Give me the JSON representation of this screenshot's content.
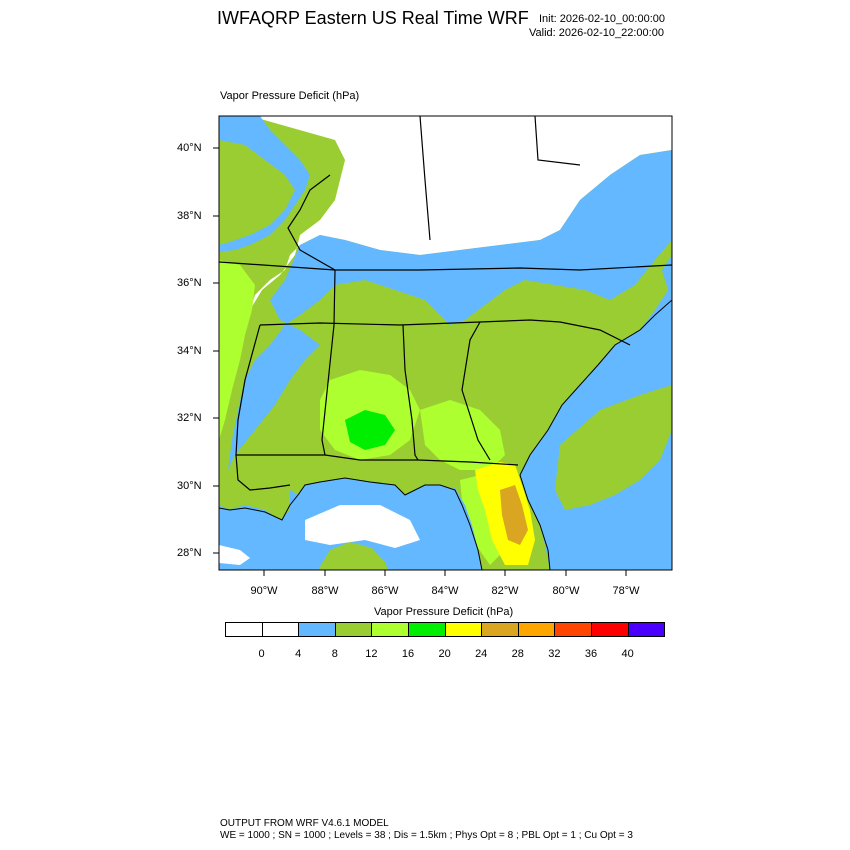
{
  "header": {
    "title": "IWFAQRP Eastern US Real Time WRF",
    "init": "Init: 2026-02-10_00:00:00",
    "valid": "Valid: 2026-02-10_22:00:00"
  },
  "plot": {
    "title": "Vapor Pressure Deficit   (hPa)"
  },
  "map": {
    "lat_range": [
      27.5,
      41.0
    ],
    "lon_range": [
      -91.5,
      -76.6
    ],
    "lat_ticks": [
      {
        "value": 40,
        "label": "40°N"
      },
      {
        "value": 38,
        "label": "38°N"
      },
      {
        "value": 36,
        "label": "36°N"
      },
      {
        "value": 34,
        "label": "34°N"
      },
      {
        "value": 32,
        "label": "32°N"
      },
      {
        "value": 30,
        "label": "30°N"
      },
      {
        "value": 28,
        "label": "28°N"
      }
    ],
    "lon_ticks": [
      {
        "value": -90,
        "label": "90°W"
      },
      {
        "value": -88,
        "label": "88°W"
      },
      {
        "value": -86,
        "label": "86°W"
      },
      {
        "value": -84,
        "label": "84°W"
      },
      {
        "value": -82,
        "label": "82°W"
      },
      {
        "value": -80,
        "label": "80°W"
      },
      {
        "value": -78,
        "label": "78°W"
      }
    ]
  },
  "colorbar": {
    "title": "Vapor Pressure Deficit  (hPa)",
    "colors": [
      "#ffffff",
      "#ffffff",
      "#63b8ff",
      "#9acd32",
      "#adff2f",
      "#00ee00",
      "#ffff00",
      "#daa520",
      "#ffa500",
      "#ff4500",
      "#ff0000",
      "#4b00ff"
    ],
    "labels": [
      "0",
      "4",
      "8",
      "12",
      "16",
      "20",
      "24",
      "28",
      "32",
      "36",
      "40"
    ]
  },
  "colors": {
    "water": "#63b8ff",
    "land_low": "#ffffff",
    "blue": "#63b8ff",
    "olive": "#9acd32",
    "lime": "#adff2f",
    "green": "#00ee00",
    "yellow": "#ffff00",
    "gold": "#daa520"
  },
  "footer": {
    "line1": "OUTPUT FROM WRF V4.6.1 MODEL",
    "line2": "WE = 1000 ; SN = 1000 ; Levels = 38 ; Dis = 1.5km ; Phys Opt = 8 ; PBL Opt = 1 ; Cu Opt = 3"
  }
}
